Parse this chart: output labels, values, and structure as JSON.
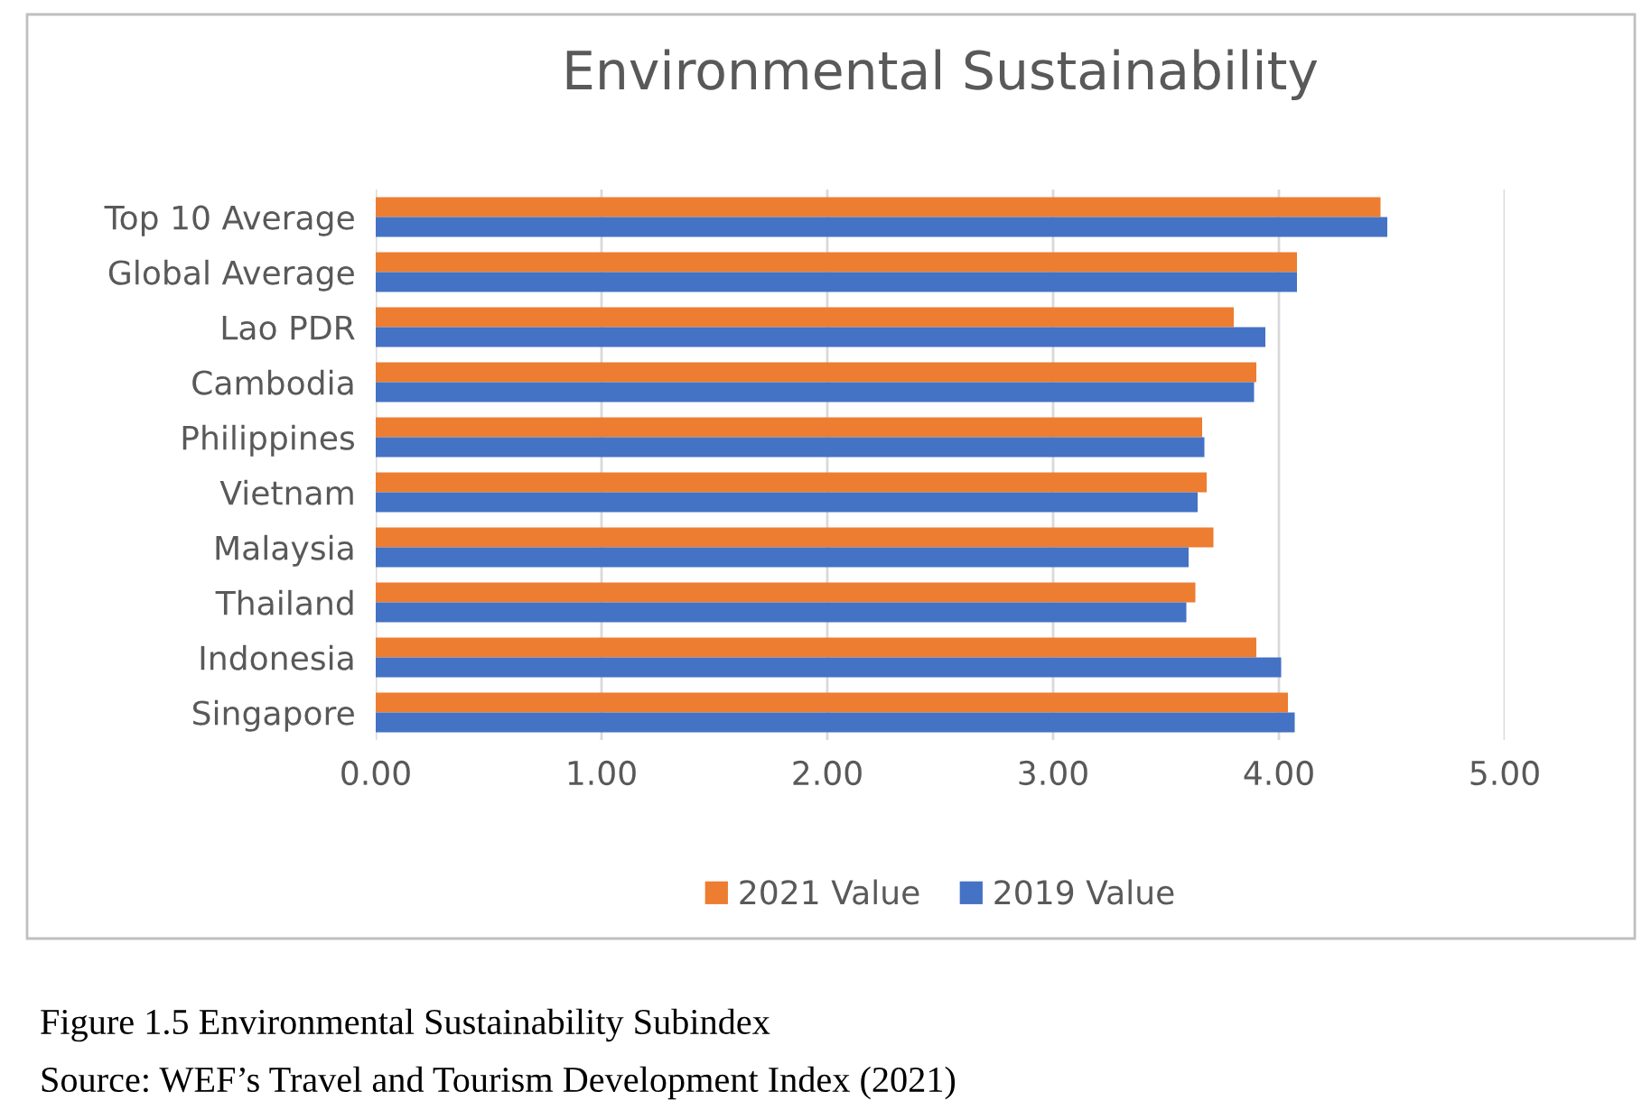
{
  "chart_data": {
    "type": "bar",
    "orientation": "horizontal",
    "title": "Environmental Sustainability",
    "categories": [
      "Top 10 Average",
      "Global Average",
      "Lao PDR",
      "Cambodia",
      "Philippines",
      "Vietnam",
      "Malaysia",
      "Thailand",
      "Indonesia",
      "Singapore"
    ],
    "series": [
      {
        "name": "2021 Value",
        "color": "#ed7d31",
        "values": [
          4.45,
          4.08,
          3.8,
          3.9,
          3.66,
          3.68,
          3.71,
          3.63,
          3.9,
          4.04
        ]
      },
      {
        "name": "2019 Value",
        "color": "#4472c4",
        "values": [
          4.48,
          4.08,
          3.94,
          3.89,
          3.67,
          3.64,
          3.6,
          3.59,
          4.01,
          4.07
        ]
      }
    ],
    "xlim": [
      0,
      5
    ],
    "xticks": [
      {
        "value": 0,
        "label": "0.00"
      },
      {
        "value": 1,
        "label": "1.00"
      },
      {
        "value": 2,
        "label": "2.00"
      },
      {
        "value": 3,
        "label": "3.00"
      },
      {
        "value": 4,
        "label": "4.00"
      },
      {
        "value": 5,
        "label": "5.00"
      }
    ],
    "grid": "x",
    "legend": "bottom",
    "annotations": [
      "Figure 1.5 Environmental Sustainability Subindex",
      "Source: WEF’s Travel and Tourism Development Index (2021)"
    ]
  }
}
